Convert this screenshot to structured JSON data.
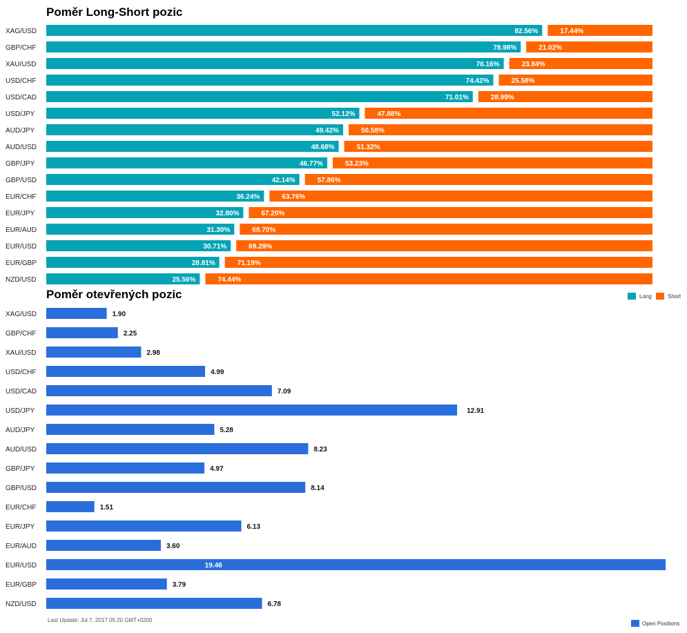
{
  "chart_data": [
    {
      "type": "bar",
      "orientation": "horizontal",
      "stacked": true,
      "title": "Poměr Long-Short pozic",
      "categories": [
        "XAG/USD",
        "GBP/CHF",
        "XAU/USD",
        "USD/CHF",
        "USD/CAD",
        "USD/JPY",
        "AUD/JPY",
        "AUD/USD",
        "GBP/JPY",
        "GBP/USD",
        "EUR/CHF",
        "EUR/JPY",
        "EUR/AUD",
        "EUR/USD",
        "EUR/GBP",
        "NZD/USD"
      ],
      "series": [
        {
          "name": "Long",
          "color": "#06a3b5",
          "values": [
            82.56,
            78.98,
            76.16,
            74.42,
            71.01,
            52.12,
            49.42,
            48.68,
            46.77,
            42.14,
            36.24,
            32.8,
            31.3,
            30.71,
            28.81,
            25.56
          ],
          "labels": [
            "82.56%",
            "78.98%",
            "76.16%",
            "74.42%",
            "71.01%",
            "52.12%",
            "49.42%",
            "48.68%",
            "46.77%",
            "42.14%",
            "36.24%",
            "32.80%",
            "31.30%",
            "30.71%",
            "28.81%",
            "25.56%"
          ]
        },
        {
          "name": "Short",
          "color": "#ff6600",
          "values": [
            17.44,
            21.02,
            23.84,
            25.58,
            28.99,
            47.88,
            50.58,
            51.32,
            53.23,
            57.86,
            63.76,
            67.2,
            68.7,
            69.29,
            71.19,
            74.44
          ],
          "labels": [
            "17.44%",
            "21.02%",
            "23.84%",
            "25.58%",
            "28.99%",
            "47.88%",
            "50.58%",
            "51.32%",
            "53.23%",
            "57.86%",
            "63.76%",
            "67.20%",
            "68.70%",
            "69.29%",
            "71.19%",
            "74.44%"
          ]
        }
      ],
      "xlim": [
        0,
        100
      ],
      "legend_position": "bottom-right"
    },
    {
      "type": "bar",
      "orientation": "horizontal",
      "title": "Poměr otevřených pozic",
      "categories": [
        "XAG/USD",
        "GBP/CHF",
        "XAU/USD",
        "USD/CHF",
        "USD/CAD",
        "USD/JPY",
        "AUD/JPY",
        "AUD/USD",
        "GBP/JPY",
        "GBP/USD",
        "EUR/CHF",
        "EUR/JPY",
        "EUR/AUD",
        "EUR/USD",
        "EUR/GBP",
        "NZD/USD"
      ],
      "series": [
        {
          "name": "Open Positions",
          "color": "#2a6edc",
          "values": [
            1.9,
            2.25,
            2.98,
            4.99,
            7.09,
            12.91,
            5.28,
            8.23,
            4.97,
            8.14,
            1.51,
            6.13,
            3.6,
            19.46,
            3.79,
            6.78
          ],
          "labels": [
            "1.90",
            "2.25",
            "2.98",
            "4.99",
            "7.09",
            "12.91",
            "5.28",
            "8.23",
            "4.97",
            "8.14",
            "1.51",
            "6.13",
            "3.60",
            "19.46",
            "3.79",
            "6.78"
          ]
        }
      ],
      "xlim": [
        0,
        19.46
      ],
      "legend_position": "bottom-right"
    }
  ],
  "footer": "Last Update: Jul 7, 2017 05:20 GMT+0200"
}
